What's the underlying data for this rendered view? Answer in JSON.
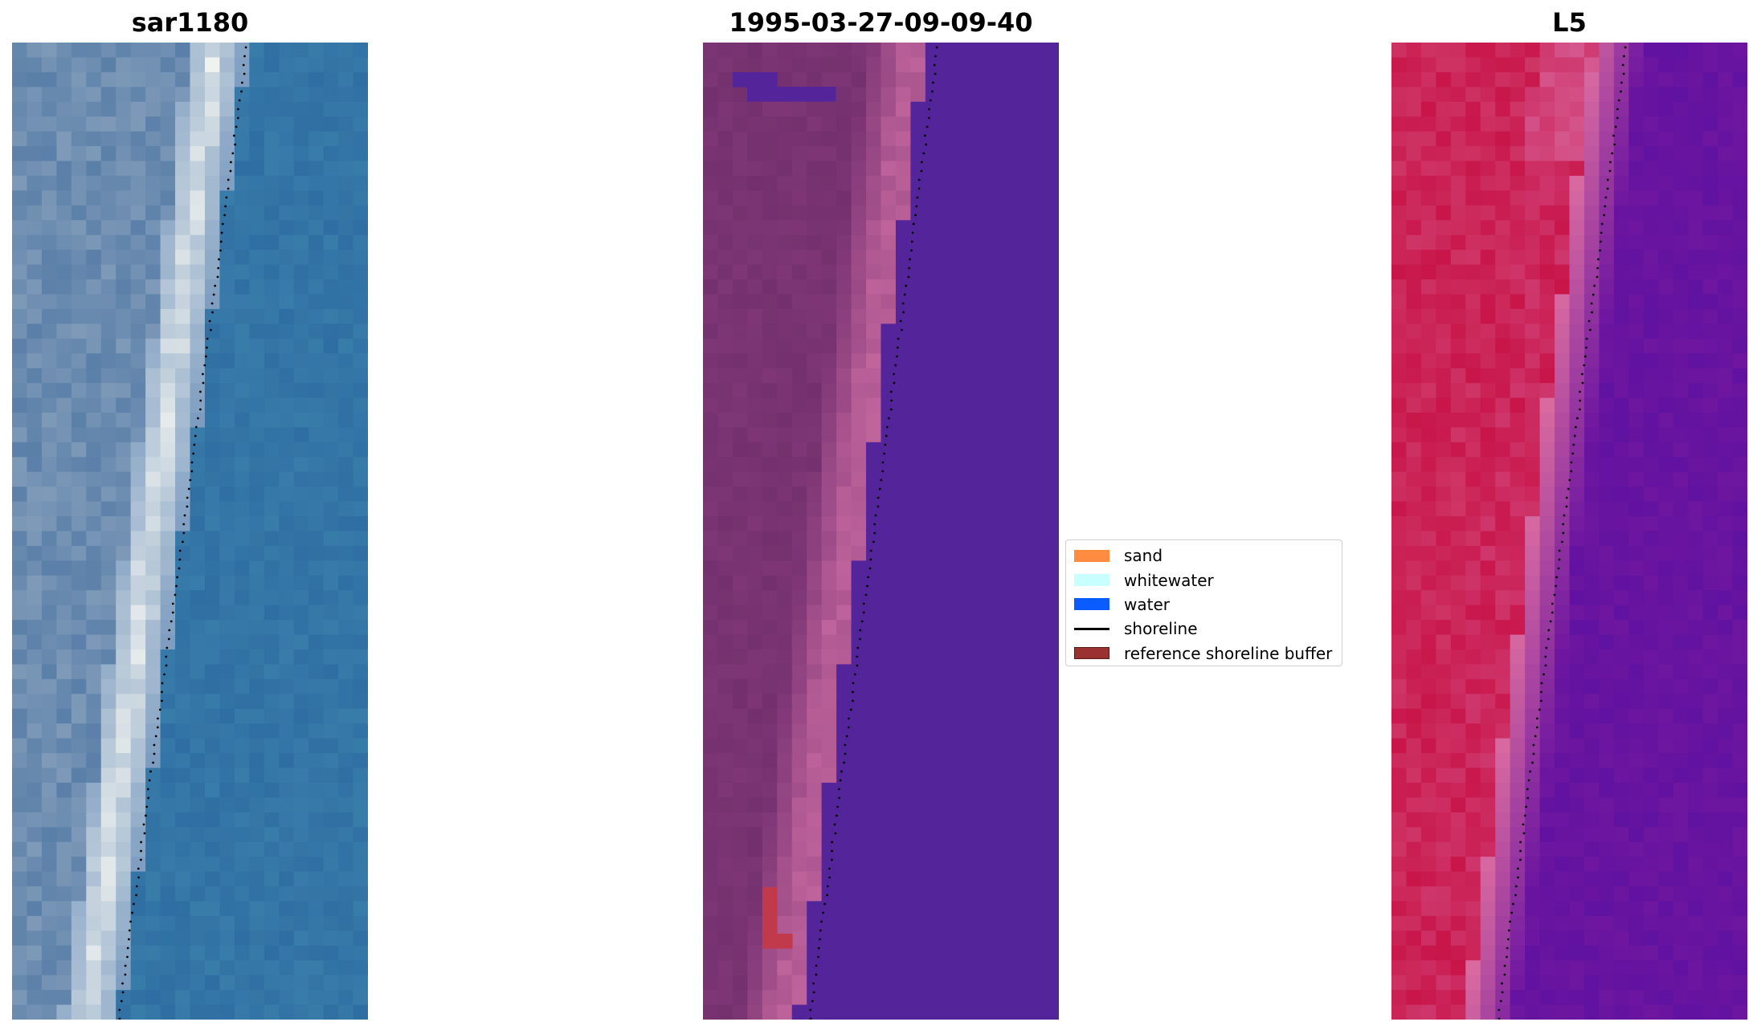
{
  "panels": [
    {
      "title": "sar1180"
    },
    {
      "title": "1995-03-27-09-09-40"
    },
    {
      "title": "L5"
    }
  ],
  "legend": {
    "items": [
      {
        "label": "sand",
        "color": "#ff8c40",
        "kind": "patch"
      },
      {
        "label": "whitewater",
        "color": "#c8ffff",
        "kind": "patch"
      },
      {
        "label": "water",
        "color": "#0a5cff",
        "kind": "patch"
      },
      {
        "label": "shoreline",
        "color": "#000000",
        "kind": "line"
      },
      {
        "label": "reference shoreline buffer",
        "color": "#9b3232",
        "kind": "patch"
      }
    ]
  },
  "colors": {
    "rgb_water": "#2f6ea2",
    "rgb_beach": "#f2f4f0",
    "classified_water": "#54249a",
    "classified_land": "#7e3676",
    "classified_wetsand": "#c0649c",
    "classified_sand_patch": "#c13a4c",
    "mndwi_land": "#c8154a",
    "mndwi_water": "#6e16a0",
    "shoreline": "#000000"
  }
}
